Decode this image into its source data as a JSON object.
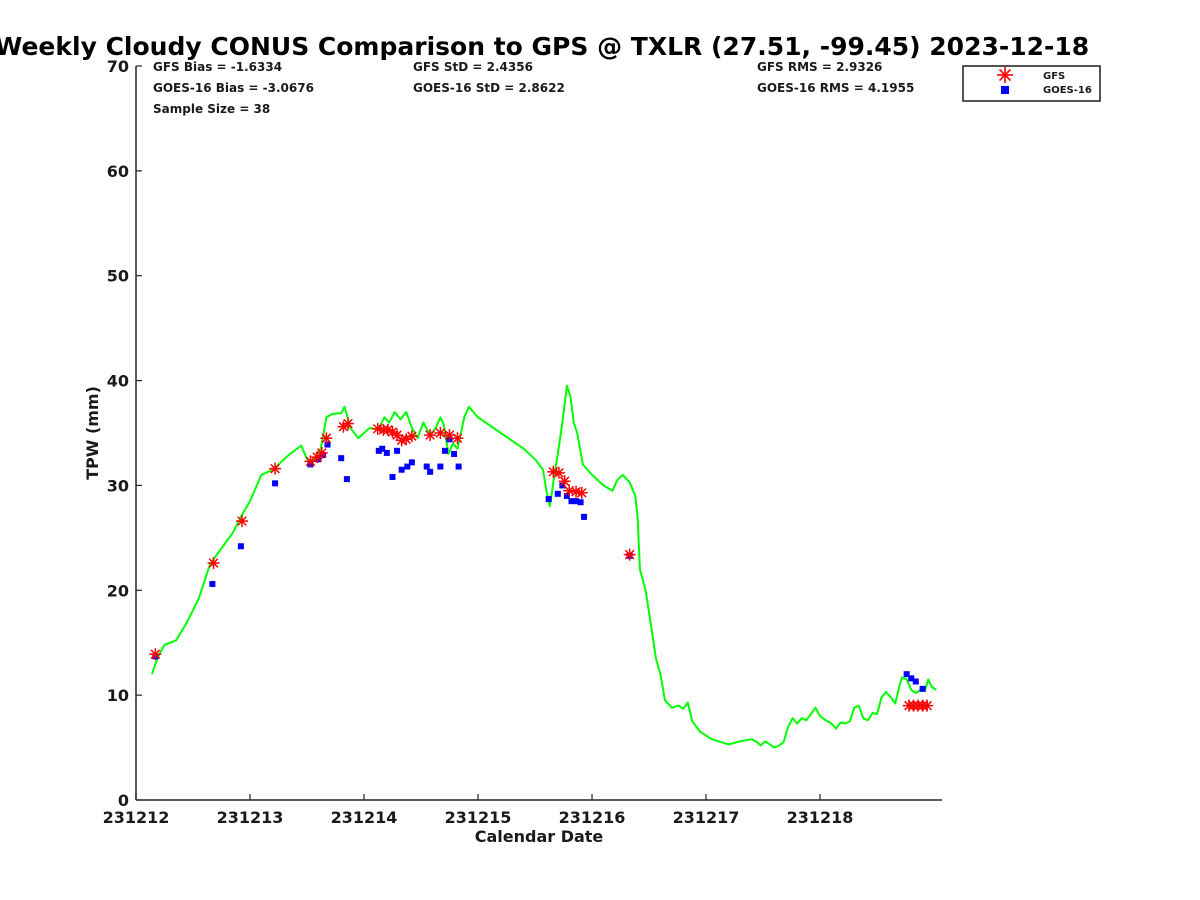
{
  "chart_data": {
    "type": "line",
    "title": "Weekly Cloudy CONUS Comparison to GPS @ TXLR (27.51, -99.45) 2023-12-18",
    "xlabel": "Calendar Date",
    "ylabel": "TPW (mm)",
    "xlim": [
      231212,
      231219.07
    ],
    "ylim": [
      0,
      70
    ],
    "x_ticks": [
      {
        "value": 231212,
        "label": "231212"
      },
      {
        "value": 231213,
        "label": "231213"
      },
      {
        "value": 231214,
        "label": "231214"
      },
      {
        "value": 231215,
        "label": "231215"
      },
      {
        "value": 231216,
        "label": "231216"
      },
      {
        "value": 231217,
        "label": "231217"
      },
      {
        "value": 231218,
        "label": "231218"
      }
    ],
    "y_ticks": [
      0,
      10,
      20,
      30,
      40,
      50,
      60,
      70
    ],
    "grid": false,
    "legend_position": "top-right",
    "stats": {
      "gfs_bias": "GFS Bias = -1.6334",
      "goes_bias": "GOES-16 Bias = -3.0676",
      "sample_size": "Sample Size = 38",
      "gfs_std": "GFS StD = 2.4356",
      "goes_std": "GOES-16 StD = 2.8622",
      "gfs_rms": "GFS RMS = 2.9326",
      "goes_rms": "GOES-16 RMS = 4.1955"
    },
    "legend": [
      {
        "label": "GFS",
        "marker": "asterisk",
        "color": "#ff0000"
      },
      {
        "label": "GOES-16",
        "marker": "square",
        "color": "#0000ff"
      }
    ],
    "gps_line": {
      "color": "#00ff00",
      "points": [
        [
          231212.14,
          12.0
        ],
        [
          231212.19,
          13.6
        ],
        [
          231212.25,
          14.8
        ],
        [
          231212.35,
          15.2
        ],
        [
          231212.45,
          17.0
        ],
        [
          231212.55,
          19.2
        ],
        [
          231212.65,
          22.5
        ],
        [
          231212.75,
          24.0
        ],
        [
          231212.85,
          25.5
        ],
        [
          231212.92,
          27.0
        ],
        [
          231213.0,
          28.5
        ],
        [
          231213.1,
          31.0
        ],
        [
          231213.2,
          31.5
        ],
        [
          231213.35,
          33.0
        ],
        [
          231213.45,
          33.8
        ],
        [
          231213.5,
          32.5
        ],
        [
          231213.55,
          32.3
        ],
        [
          231213.62,
          33.5
        ],
        [
          231213.67,
          36.5
        ],
        [
          231213.72,
          36.8
        ],
        [
          231213.8,
          36.9
        ],
        [
          231213.83,
          37.5
        ],
        [
          231213.88,
          35.5
        ],
        [
          231213.95,
          34.5
        ],
        [
          231214.05,
          35.5
        ],
        [
          231214.12,
          35.3
        ],
        [
          231214.18,
          36.5
        ],
        [
          231214.22,
          36.0
        ],
        [
          231214.27,
          37.0
        ],
        [
          231214.32,
          36.3
        ],
        [
          231214.37,
          37.0
        ],
        [
          231214.42,
          35.5
        ],
        [
          231214.47,
          34.5
        ],
        [
          231214.52,
          36.0
        ],
        [
          231214.58,
          34.8
        ],
        [
          231214.63,
          35.5
        ],
        [
          231214.67,
          36.5
        ],
        [
          231214.7,
          35.8
        ],
        [
          231214.74,
          33.0
        ],
        [
          231214.78,
          34.0
        ],
        [
          231214.82,
          33.5
        ],
        [
          231214.88,
          36.5
        ],
        [
          231214.92,
          37.5
        ],
        [
          231215.0,
          36.5
        ],
        [
          231215.4,
          33.5
        ],
        [
          231215.5,
          32.5
        ],
        [
          231215.57,
          31.5
        ],
        [
          231215.6,
          29.5
        ],
        [
          231215.63,
          28.0
        ],
        [
          231215.67,
          31.0
        ],
        [
          231215.7,
          33.0
        ],
        [
          231215.74,
          36.0
        ],
        [
          231215.78,
          39.5
        ],
        [
          231215.81,
          38.5
        ],
        [
          231215.84,
          36.0
        ],
        [
          231215.87,
          35.0
        ],
        [
          231215.92,
          32.0
        ],
        [
          231216.0,
          31.0
        ],
        [
          231216.1,
          30.0
        ],
        [
          231216.18,
          29.5
        ],
        [
          231216.22,
          30.5
        ],
        [
          231216.27,
          31.0
        ],
        [
          231216.33,
          30.3
        ],
        [
          231216.38,
          29.0
        ],
        [
          231216.4,
          27.0
        ],
        [
          231216.42,
          22.0
        ],
        [
          231216.47,
          20.0
        ],
        [
          231216.52,
          16.5
        ],
        [
          231216.56,
          13.5
        ],
        [
          231216.6,
          12.0
        ],
        [
          231216.64,
          9.5
        ],
        [
          231216.7,
          8.8
        ],
        [
          231216.76,
          9.0
        ],
        [
          231216.8,
          8.7
        ],
        [
          231216.84,
          9.3
        ],
        [
          231216.88,
          7.5
        ],
        [
          231216.95,
          6.5
        ],
        [
          231217.05,
          5.8
        ],
        [
          231217.2,
          5.3
        ],
        [
          231217.3,
          5.6
        ],
        [
          231217.4,
          5.8
        ],
        [
          231217.45,
          5.5
        ],
        [
          231217.48,
          5.2
        ],
        [
          231217.52,
          5.6
        ],
        [
          231217.56,
          5.3
        ],
        [
          231217.6,
          5.0
        ],
        [
          231217.64,
          5.2
        ],
        [
          231217.68,
          5.5
        ],
        [
          231217.72,
          7.0
        ],
        [
          231217.76,
          7.8
        ],
        [
          231217.8,
          7.3
        ],
        [
          231217.84,
          7.8
        ],
        [
          231217.88,
          7.6
        ],
        [
          231217.92,
          8.2
        ],
        [
          231217.96,
          8.8
        ],
        [
          231218.0,
          8.0
        ],
        [
          231218.05,
          7.6
        ],
        [
          231218.1,
          7.3
        ],
        [
          231218.14,
          6.8
        ],
        [
          231218.18,
          7.4
        ],
        [
          231218.22,
          7.3
        ],
        [
          231218.26,
          7.5
        ],
        [
          231218.3,
          8.8
        ],
        [
          231218.34,
          9.0
        ],
        [
          231218.38,
          7.8
        ],
        [
          231218.42,
          7.6
        ],
        [
          231218.46,
          8.3
        ],
        [
          231218.5,
          8.2
        ],
        [
          231218.54,
          9.8
        ],
        [
          231218.58,
          10.3
        ],
        [
          231218.62,
          9.8
        ],
        [
          231218.66,
          9.2
        ],
        [
          231218.7,
          11.0
        ],
        [
          231218.72,
          11.7
        ],
        [
          231218.76,
          11.5
        ],
        [
          231218.8,
          10.5
        ],
        [
          231218.84,
          10.2
        ],
        [
          231218.88,
          10.5
        ],
        [
          231218.92,
          10.4
        ],
        [
          231218.95,
          11.5
        ],
        [
          231218.98,
          10.8
        ],
        [
          231219.02,
          10.5
        ]
      ]
    },
    "series": [
      {
        "name": "GFS",
        "color": "#ff0000",
        "marker": "asterisk",
        "x": [
          231212.17,
          231212.68,
          231212.93,
          231213.22,
          231213.53,
          231213.59,
          231213.63,
          231213.67,
          231213.82,
          231213.86,
          231214.12,
          231214.17,
          231214.21,
          231214.25,
          231214.29,
          231214.33,
          231214.37,
          231214.42,
          231214.58,
          231214.67,
          231214.75,
          231214.82,
          231215.66,
          231215.71,
          231215.76,
          231215.8,
          231215.86,
          231215.91,
          231216.33,
          231218.78,
          231218.82,
          231218.86,
          231218.9,
          231218.94
        ],
        "y": [
          13.9,
          22.6,
          26.6,
          31.6,
          32.3,
          32.7,
          33.1,
          34.5,
          35.6,
          35.9,
          35.4,
          35.3,
          35.3,
          35.1,
          34.8,
          34.3,
          34.4,
          34.7,
          34.8,
          35.0,
          34.8,
          34.5,
          31.3,
          31.2,
          30.4,
          29.5,
          29.4,
          29.3,
          23.4,
          9.0,
          9.0,
          9.0,
          9.0,
          9.0
        ]
      },
      {
        "name": "GOES-16",
        "color": "#0000ff",
        "marker": "square",
        "x": [
          231212.17,
          231212.67,
          231212.92,
          231213.22,
          231213.53,
          231213.6,
          231213.64,
          231213.68,
          231213.8,
          231213.85,
          231214.13,
          231214.16,
          231214.2,
          231214.25,
          231214.29,
          231214.33,
          231214.38,
          231214.42,
          231214.55,
          231214.58,
          231214.67,
          231214.71,
          231214.75,
          231214.79,
          231214.83,
          231215.62,
          231215.7,
          231215.74,
          231215.78,
          231215.82,
          231215.86,
          231215.9,
          231215.93,
          231216.33,
          231218.76,
          231218.8,
          231218.84,
          231218.9
        ],
        "y": [
          13.7,
          20.6,
          24.2,
          30.2,
          32.0,
          32.5,
          32.9,
          33.9,
          32.6,
          30.6,
          33.3,
          33.5,
          33.1,
          30.8,
          33.3,
          31.5,
          31.8,
          32.2,
          31.8,
          31.3,
          31.8,
          33.3,
          34.4,
          33.0,
          31.8,
          28.7,
          29.2,
          30.0,
          29.0,
          28.5,
          28.5,
          28.4,
          27.0,
          23.3,
          12.0,
          11.6,
          11.3,
          10.6
        ]
      }
    ]
  }
}
